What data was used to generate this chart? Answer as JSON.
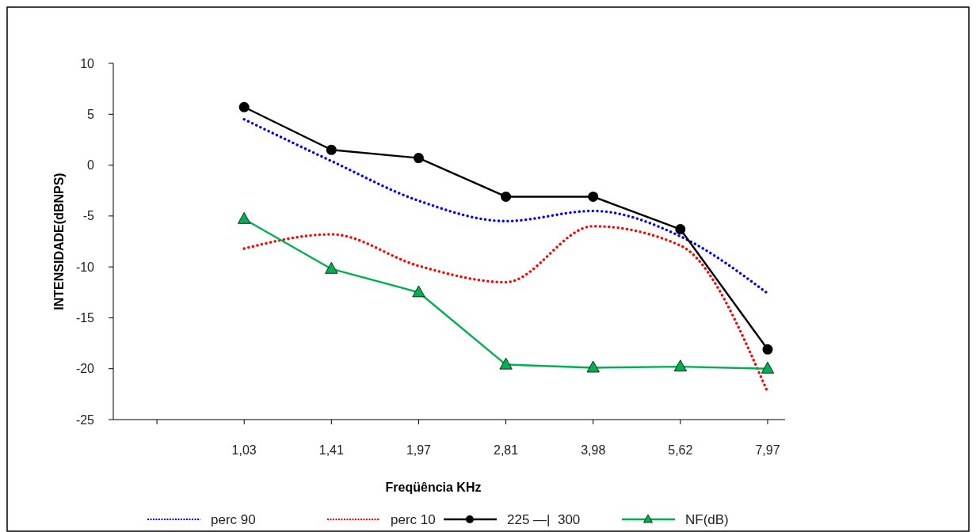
{
  "chart_data": {
    "type": "line",
    "xlabel": "Freqüência KHz",
    "ylabel": "INTENSIDADE(dBNPS)",
    "categories": [
      null,
      "1,03",
      "1,41",
      "1,97",
      "2,81",
      "3,98",
      "5,62",
      "7,97"
    ],
    "ylim": [
      -25,
      10
    ],
    "yticks": [
      -25,
      -20,
      -15,
      -10,
      -5,
      0,
      5,
      10
    ],
    "grid": false,
    "legend": "bottom",
    "series": [
      {
        "name": "perc 90",
        "color": "#0000ff",
        "line_style": "dotted",
        "marker": "none",
        "values": [
          null,
          4.5,
          0.4,
          -3.5,
          -5.5,
          -4.5,
          -7,
          -12.6
        ]
      },
      {
        "name": "perc 10",
        "color": "#ff0000",
        "line_style": "dotted",
        "marker": "none",
        "values": [
          null,
          -8.2,
          -6.8,
          -9.9,
          -11.5,
          -6,
          -7.9,
          -22.3
        ]
      },
      {
        "name": "225 —|  300",
        "color": "#000000",
        "line_style": "solid",
        "marker": "circle",
        "values": [
          null,
          5.7,
          1.5,
          0.7,
          -3.1,
          -3.1,
          -6.3,
          -18.1
        ]
      },
      {
        "name": "NF(dB)",
        "color": "#00b050",
        "line_style": "solid",
        "marker": "triangle",
        "values": [
          null,
          -5.3,
          -10.2,
          -12.5,
          -19.6,
          -19.9,
          -19.8,
          -20
        ]
      }
    ]
  }
}
